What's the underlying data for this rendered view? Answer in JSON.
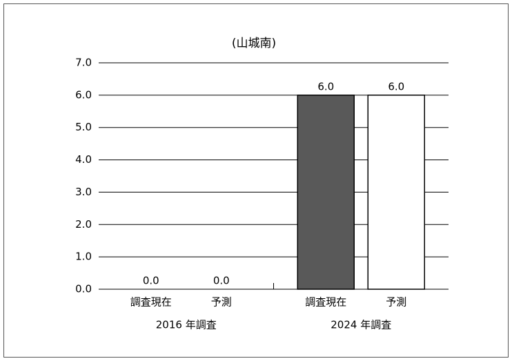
{
  "chart_data": {
    "type": "bar",
    "title": "(山城南)",
    "categories": [
      "2016 年調査",
      "2024 年調査"
    ],
    "series": [
      {
        "name": "調査現在",
        "color": "#595959",
        "values": [
          0,
          6
        ],
        "value_labels": [
          "0.0",
          "6.0"
        ]
      },
      {
        "name": "予測",
        "color": "#ffffff",
        "values": [
          0,
          6
        ],
        "value_labels": [
          "0.0",
          "6.0"
        ]
      }
    ],
    "ylim": [
      0,
      7
    ],
    "yticks": [
      {
        "value": 0,
        "label": "0.0"
      },
      {
        "value": 1,
        "label": "1.0"
      },
      {
        "value": 2,
        "label": "2.0"
      },
      {
        "value": 3,
        "label": "3.0"
      },
      {
        "value": 4,
        "label": "4.0"
      },
      {
        "value": 5,
        "label": "5.0"
      },
      {
        "value": 6,
        "label": "6.0"
      },
      {
        "value": 7,
        "label": "7.0"
      }
    ],
    "grid": true
  }
}
